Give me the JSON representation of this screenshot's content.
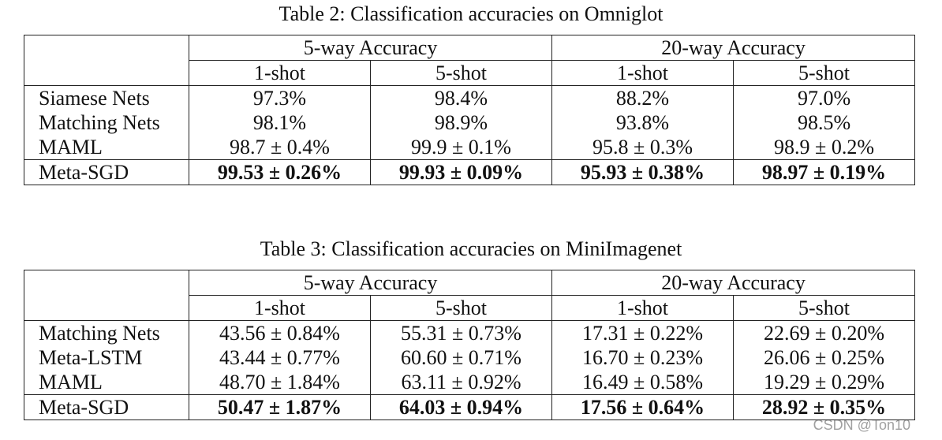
{
  "tables": [
    {
      "caption": "Table 2: Classification accuracies on Omniglot",
      "group_headers": [
        "5-way Accuracy",
        "20-way Accuracy"
      ],
      "shot_headers": [
        "1-shot",
        "5-shot",
        "1-shot",
        "5-shot"
      ],
      "rows": [
        {
          "label": "Siamese Nets",
          "cells": [
            "97.3%",
            "98.4%",
            "88.2%",
            "97.0%"
          ]
        },
        {
          "label": "Matching Nets",
          "cells": [
            "98.1%",
            "98.9%",
            "93.8%",
            "98.5%"
          ]
        },
        {
          "label": "MAML",
          "cells": [
            "98.7 ± 0.4%",
            "99.9 ± 0.1%",
            "95.8 ± 0.3%",
            "98.9 ± 0.2%"
          ]
        },
        {
          "label": "Meta-SGD",
          "cells": [
            "99.53 ± 0.26%",
            "99.93 ± 0.09%",
            "95.93 ± 0.38%",
            "98.97 ± 0.19%"
          ]
        }
      ]
    },
    {
      "caption": "Table 3: Classification accuracies on MiniImagenet",
      "group_headers": [
        "5-way Accuracy",
        "20-way Accuracy"
      ],
      "shot_headers": [
        "1-shot",
        "5-shot",
        "1-shot",
        "5-shot"
      ],
      "rows": [
        {
          "label": "Matching Nets",
          "cells": [
            "43.56 ± 0.84%",
            "55.31 ± 0.73%",
            "17.31 ± 0.22%",
            "22.69 ± 0.20%"
          ]
        },
        {
          "label": "Meta-LSTM",
          "cells": [
            "43.44 ± 0.77%",
            "60.60 ± 0.71%",
            "16.70 ± 0.23%",
            "26.06 ± 0.25%"
          ]
        },
        {
          "label": "MAML",
          "cells": [
            "48.70 ± 1.84%",
            "63.11 ± 0.92%",
            "16.49 ± 0.58%",
            "19.29 ± 0.29%"
          ]
        },
        {
          "label": "Meta-SGD",
          "cells": [
            "50.47 ± 1.87%",
            "64.03 ± 0.94%",
            "17.56 ± 0.64%",
            "28.92 ± 0.35%"
          ]
        }
      ]
    }
  ],
  "watermark": "CSDN @Ton10"
}
